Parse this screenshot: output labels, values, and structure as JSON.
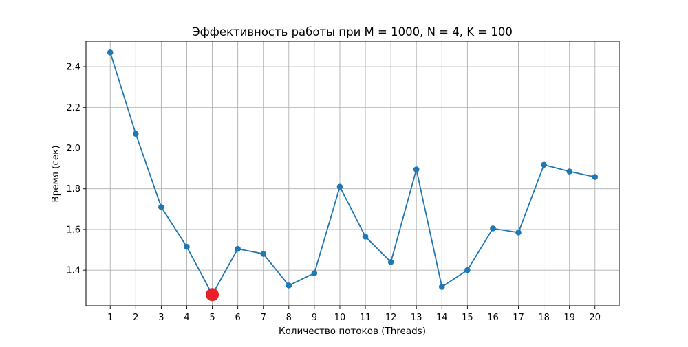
{
  "chart_data": {
    "type": "line",
    "title": "Эффективность работы при M = 1000, N = 4, K = 100",
    "xlabel": "Количество потоков (Threads)",
    "ylabel": "Время (сек)",
    "x": [
      1,
      2,
      3,
      4,
      5,
      6,
      7,
      8,
      9,
      10,
      11,
      12,
      13,
      14,
      15,
      16,
      17,
      18,
      19,
      20
    ],
    "x_tick_labels": [
      "1",
      "2",
      "3",
      "4",
      "5",
      "6",
      "7",
      "8",
      "9",
      "10",
      "11",
      "12",
      "13",
      "14",
      "15",
      "16",
      "17",
      "18",
      "19",
      "20"
    ],
    "series": [
      {
        "values": [
          2.47,
          2.07,
          1.71,
          1.515,
          1.28,
          1.505,
          1.48,
          1.325,
          1.385,
          1.81,
          1.565,
          1.44,
          1.895,
          1.318,
          1.4,
          1.605,
          1.585,
          1.918,
          1.885,
          1.858
        ],
        "color": "#1f77b4"
      }
    ],
    "highlight": {
      "x": 5,
      "y": 1.28,
      "color": "#e8202a"
    },
    "xlim": [
      0.05,
      20.95
    ],
    "ylim": [
      1.225,
      2.525
    ],
    "y_ticks": [
      1.4,
      1.6,
      1.8,
      2.0,
      2.2,
      2.4
    ],
    "y_tick_labels": [
      "1.4",
      "1.6",
      "1.8",
      "2.0",
      "2.2",
      "2.4"
    ],
    "grid": true,
    "grid_color": "#b0b0b0"
  }
}
